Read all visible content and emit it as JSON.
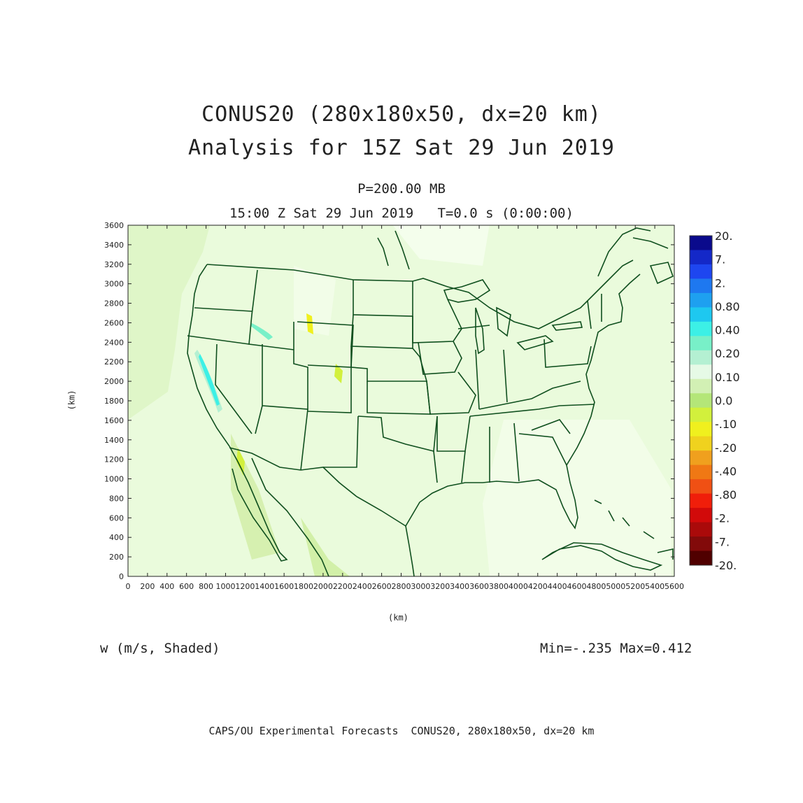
{
  "title_line1": "CONUS20 (280x180x50, dx=20 km)",
  "title_line2": "Analysis for 15Z Sat 29 Jun 2019",
  "subtitle_level": "P=200.00 MB",
  "subtitle_time": "15:00 Z Sat 29 Jun 2019   T=0.0 s (0:00:00)",
  "y_axis_label": "(km)",
  "x_axis_label": "(km)",
  "field_label": "w (m/s, Shaded)",
  "min_max": "Min=-.235 Max=0.412",
  "footer": "CAPS/OU Experimental Forecasts  CONUS20, 280x180x50, dx=20 km",
  "axes": {
    "x_ticks": [
      "0",
      "200",
      "400",
      "600",
      "800",
      "1000",
      "1200",
      "1400",
      "1600",
      "1800",
      "2000",
      "2200",
      "2400",
      "2600",
      "2800",
      "3000",
      "3200",
      "3400",
      "3600",
      "3800",
      "4000",
      "4200",
      "4400",
      "4600",
      "4800",
      "5000",
      "5200",
      "5400",
      "5600"
    ],
    "y_ticks": [
      "0",
      "200",
      "400",
      "600",
      "800",
      "1000",
      "1200",
      "1400",
      "1600",
      "1800",
      "2000",
      "2200",
      "2400",
      "2600",
      "2800",
      "3000",
      "3200",
      "3400",
      "3600"
    ],
    "x_range": [
      0,
      5600
    ],
    "y_range": [
      0,
      3600
    ]
  },
  "colorbar": {
    "labels": [
      "20.",
      "7.",
      "2.",
      "0.80",
      "0.40",
      "0.20",
      "0.10",
      "0.0",
      "-.10",
      "-.20",
      "-.40",
      "-.80",
      "-2.",
      "-7.",
      "-20."
    ],
    "colors": [
      "#0a0a8c",
      "#1428c8",
      "#1e46f0",
      "#1e78f0",
      "#1ea0f0",
      "#1ec8f0",
      "#3cf0e6",
      "#78f0c8",
      "#b4f0d2",
      "#e6fae6",
      "#d2f0b4",
      "#b4e678",
      "#d2f03c",
      "#f0f01e",
      "#f0d21e",
      "#f0a01e",
      "#f07814",
      "#f05014",
      "#f01e0a",
      "#d20a0a",
      "#aa0a0a",
      "#820a0a",
      "#500000"
    ]
  },
  "map_colors": {
    "background": "#eafbdc",
    "boundary": "#0f4f1e"
  }
}
